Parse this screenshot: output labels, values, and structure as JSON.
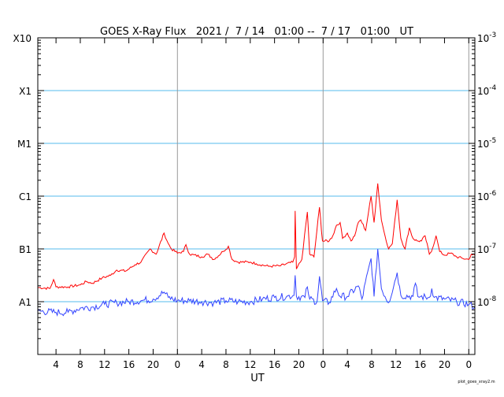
{
  "chart_data": {
    "type": "line",
    "title": "GOES X-Ray Flux   2021 /  7 / 14   01:00 --  7 / 17   01:00   UT",
    "xlabel": "UT",
    "footer": "plot_goes_xray2.m",
    "x_units": "hours since 2021-07-14 01:00 UT",
    "xlim": [
      0,
      72
    ],
    "ylim_log10": [
      -9,
      -3
    ],
    "x_tick_labels": [
      {
        "h": 3,
        "label": "4"
      },
      {
        "h": 7,
        "label": "8"
      },
      {
        "h": 11,
        "label": "12"
      },
      {
        "h": 15,
        "label": "16"
      },
      {
        "h": 19,
        "label": "20"
      },
      {
        "h": 23,
        "label": "0"
      },
      {
        "h": 27,
        "label": "4"
      },
      {
        "h": 31,
        "label": "8"
      },
      {
        "h": 35,
        "label": "12"
      },
      {
        "h": 39,
        "label": "16"
      },
      {
        "h": 43,
        "label": "20"
      },
      {
        "h": 47,
        "label": "0"
      },
      {
        "h": 51,
        "label": "4"
      },
      {
        "h": 55,
        "label": "8"
      },
      {
        "h": 59,
        "label": "12"
      },
      {
        "h": 63,
        "label": "16"
      },
      {
        "h": 67,
        "label": "20"
      },
      {
        "h": 71,
        "label": "0"
      }
    ],
    "day_boundaries": [
      23,
      47,
      71
    ],
    "left_labels": [
      {
        "log": -3,
        "label": "X10"
      },
      {
        "log": -4,
        "label": "X1"
      },
      {
        "log": -5,
        "label": "M1"
      },
      {
        "log": -6,
        "label": "C1"
      },
      {
        "log": -7,
        "label": "B1"
      },
      {
        "log": -8,
        "label": "A1"
      }
    ],
    "right_labels": [
      {
        "log": -3,
        "exp": "-3"
      },
      {
        "log": -4,
        "exp": "-4"
      },
      {
        "log": -5,
        "exp": "-5"
      },
      {
        "log": -6,
        "exp": "-6"
      },
      {
        "log": -7,
        "exp": "-7"
      },
      {
        "log": -8,
        "exp": "-8"
      }
    ],
    "grid_lines_log": [
      -4,
      -5,
      -6,
      -7,
      -8
    ],
    "colors": {
      "long": "#ff0000",
      "short": "#3344ff",
      "grid": "#55bbee",
      "day": "#999999"
    },
    "series": [
      {
        "name": "long",
        "color": "#ff0000",
        "points": [
          [
            0,
            -7.73
          ],
          [
            2,
            -7.75
          ],
          [
            2.6,
            -7.58
          ],
          [
            3,
            -7.72
          ],
          [
            5,
            -7.72
          ],
          [
            7,
            -7.68
          ],
          [
            8,
            -7.62
          ],
          [
            9,
            -7.65
          ],
          [
            10.6,
            -7.55
          ],
          [
            12,
            -7.5
          ],
          [
            13,
            -7.4
          ],
          [
            14.5,
            -7.42
          ],
          [
            16,
            -7.3
          ],
          [
            17,
            -7.25
          ],
          [
            18.5,
            -7.0
          ],
          [
            19.5,
            -7.1
          ],
          [
            20.8,
            -6.7
          ],
          [
            21.5,
            -6.9
          ],
          [
            22,
            -7.0
          ],
          [
            23,
            -7.08
          ],
          [
            24,
            -7.05
          ],
          [
            24.4,
            -6.92
          ],
          [
            25,
            -7.1
          ],
          [
            27,
            -7.15
          ],
          [
            28,
            -7.1
          ],
          [
            29,
            -7.2
          ],
          [
            30.5,
            -7.05
          ],
          [
            31.4,
            -6.95
          ],
          [
            32,
            -7.2
          ],
          [
            33,
            -7.25
          ],
          [
            35,
            -7.25
          ],
          [
            36,
            -7.28
          ],
          [
            38,
            -7.33
          ],
          [
            40,
            -7.32
          ],
          [
            42,
            -7.25
          ],
          [
            42.3,
            -7.15
          ],
          [
            42.4,
            -6.28
          ],
          [
            42.6,
            -7.38
          ],
          [
            43.5,
            -7.2
          ],
          [
            44.4,
            -6.3
          ],
          [
            44.8,
            -7.1
          ],
          [
            45.5,
            -7.15
          ],
          [
            46.4,
            -6.21
          ],
          [
            46.9,
            -6.85
          ],
          [
            48,
            -6.85
          ],
          [
            48.6,
            -6.75
          ],
          [
            49.2,
            -6.55
          ],
          [
            49.8,
            -6.5
          ],
          [
            50.2,
            -6.8
          ],
          [
            51,
            -6.7
          ],
          [
            51.6,
            -6.85
          ],
          [
            52.2,
            -6.75
          ],
          [
            52.8,
            -6.5
          ],
          [
            53.2,
            -6.45
          ],
          [
            54,
            -6.65
          ],
          [
            54.9,
            -6.0
          ],
          [
            55.4,
            -6.5
          ],
          [
            56,
            -5.76
          ],
          [
            56.6,
            -6.45
          ],
          [
            57.2,
            -6.75
          ],
          [
            57.8,
            -7.0
          ],
          [
            58.4,
            -6.9
          ],
          [
            59.2,
            -6.07
          ],
          [
            59.8,
            -6.8
          ],
          [
            60.5,
            -7.0
          ],
          [
            61.2,
            -6.6
          ],
          [
            61.8,
            -6.8
          ],
          [
            62.5,
            -6.85
          ],
          [
            63.2,
            -6.85
          ],
          [
            63.8,
            -6.75
          ],
          [
            64.5,
            -7.1
          ],
          [
            65,
            -7.0
          ],
          [
            65.6,
            -6.75
          ],
          [
            66.2,
            -7.05
          ],
          [
            67,
            -7.12
          ],
          [
            68,
            -7.08
          ],
          [
            69,
            -7.15
          ],
          [
            70,
            -7.18
          ],
          [
            71,
            -7.2
          ],
          [
            71.4,
            -7.1
          ],
          [
            72,
            -7.12
          ]
        ]
      },
      {
        "name": "short",
        "color": "#3344ff",
        "points": [
          [
            0,
            -8.18
          ],
          [
            3,
            -8.2
          ],
          [
            5,
            -8.2
          ],
          [
            7,
            -8.12
          ],
          [
            9,
            -8.1
          ],
          [
            11,
            -8.05
          ],
          [
            13,
            -8.02
          ],
          [
            15,
            -8.0
          ],
          [
            17,
            -7.98
          ],
          [
            19,
            -7.95
          ],
          [
            20.8,
            -7.82
          ],
          [
            21.5,
            -7.92
          ],
          [
            23,
            -7.98
          ],
          [
            25,
            -7.98
          ],
          [
            27,
            -8.0
          ],
          [
            29,
            -8.02
          ],
          [
            31,
            -7.98
          ],
          [
            33,
            -8.0
          ],
          [
            35,
            -8.0
          ],
          [
            37,
            -7.95
          ],
          [
            39,
            -7.92
          ],
          [
            41,
            -7.9
          ],
          [
            42.2,
            -7.88
          ],
          [
            42.4,
            -7.5
          ],
          [
            42.6,
            -7.9
          ],
          [
            44,
            -7.92
          ],
          [
            44.4,
            -7.72
          ],
          [
            44.8,
            -7.95
          ],
          [
            46,
            -8.0
          ],
          [
            46.4,
            -7.52
          ],
          [
            46.9,
            -7.98
          ],
          [
            48,
            -8.02
          ],
          [
            49.2,
            -7.75
          ],
          [
            49.8,
            -7.9
          ],
          [
            51,
            -7.9
          ],
          [
            52.8,
            -7.7
          ],
          [
            53.4,
            -7.95
          ],
          [
            54.9,
            -7.18
          ],
          [
            55.4,
            -7.9
          ],
          [
            56,
            -7.0
          ],
          [
            56.6,
            -7.75
          ],
          [
            57.8,
            -8.02
          ],
          [
            59.2,
            -7.45
          ],
          [
            59.8,
            -7.88
          ],
          [
            61.8,
            -7.9
          ],
          [
            62.2,
            -7.65
          ],
          [
            62.6,
            -7.9
          ],
          [
            64.5,
            -7.92
          ],
          [
            64.9,
            -7.75
          ],
          [
            65.3,
            -7.92
          ],
          [
            67,
            -7.95
          ],
          [
            69,
            -8.0
          ],
          [
            71,
            -8.05
          ],
          [
            72,
            -8.1
          ]
        ]
      }
    ]
  }
}
